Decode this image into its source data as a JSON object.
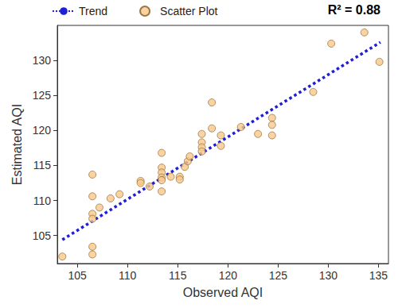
{
  "chart_data": {
    "type": "scatter",
    "x_label": "Observed AQI",
    "y_label": "Estimated AQI",
    "annotations": [
      "R² = 0.88"
    ],
    "xlim": [
      103,
      136
    ],
    "xticks": [
      105,
      110,
      115,
      120,
      125,
      130,
      135
    ],
    "ylim": [
      101,
      135
    ],
    "yticks": [
      105,
      110,
      115,
      120,
      125,
      130
    ],
    "grid": false,
    "legend": "top",
    "series": [
      {
        "name": "Trend",
        "type": "line",
        "color": "#1f1fd6",
        "line_style": "dotted",
        "x": [
          103.5,
          135.2
        ],
        "values": [
          104.4,
          132.6
        ]
      },
      {
        "name": "Scatter Plot",
        "type": "scatter",
        "color": "#f8c98b",
        "marker": "circle",
        "x": [
          103.5,
          106.5,
          106.5,
          106.5,
          106.5,
          106.5,
          106.5,
          107.2,
          108.3,
          109.2,
          111.3,
          111.3,
          112.2,
          113.4,
          113.4,
          113.4,
          113.4,
          113.4,
          113.4,
          114.3,
          115.2,
          115.2,
          115.7,
          116,
          116.2,
          117.4,
          117.4,
          117.4,
          117.4,
          118.4,
          118.4,
          119.3,
          119.3,
          121.3,
          123,
          124.4,
          124.4,
          124.4,
          128.5,
          130.3,
          133.6,
          135.1
        ],
        "values": [
          102,
          113.7,
          110.6,
          108.1,
          107.4,
          103.4,
          102.3,
          109,
          110.3,
          110.9,
          112.8,
          112.5,
          112,
          116.8,
          114.7,
          114,
          113.3,
          112.9,
          111.3,
          113.4,
          113.4,
          113,
          114.8,
          115.6,
          116.3,
          119.5,
          118.3,
          117.6,
          117,
          124,
          120.3,
          119.3,
          117.8,
          120.5,
          119.5,
          121.8,
          120.8,
          119.3,
          125.5,
          132.4,
          134,
          129.8
        ]
      }
    ]
  }
}
